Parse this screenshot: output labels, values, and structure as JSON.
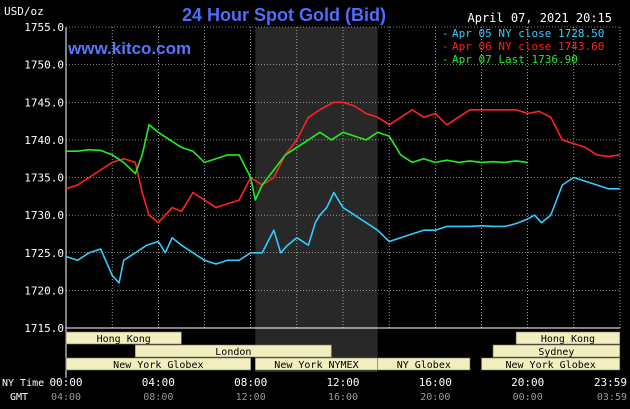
{
  "header": {
    "unit": "USD/oz",
    "title": "24 Hour Spot Gold (Bid)",
    "date": "April 07, 2021 20:15",
    "site": "www.kitco.com"
  },
  "legend": [
    {
      "label": "Apr 05 NY close 1728.50",
      "color": "#33ccff"
    },
    {
      "label": "Apr 06 NY close 1743.60",
      "color": "#ff2222"
    },
    {
      "label": "Apr 07 Last 1736.90",
      "color": "#22ee22"
    }
  ],
  "axis": {
    "y_ticks": [
      "1755.0",
      "1750.0",
      "1745.0",
      "1740.0",
      "1735.0",
      "1730.0",
      "1725.0",
      "1720.0",
      "1715.0"
    ],
    "ny_label": "NY Time",
    "gmt_label": "GMT",
    "ny_ticks": [
      "00:00",
      "04:00",
      "08:00",
      "12:00",
      "16:00",
      "20:00",
      "23:59"
    ],
    "gmt_ticks": [
      "04:00",
      "08:00",
      "12:00",
      "16:00",
      "20:00",
      "00:00",
      "03:59"
    ]
  },
  "sessions": [
    {
      "label": "Hong Kong",
      "row": 0,
      "start": 0,
      "end": 5
    },
    {
      "label": "Hong Kong",
      "row": 0,
      "start": 19.5,
      "end": 23.99
    },
    {
      "label": "London",
      "row": 1,
      "start": 3,
      "end": 11.5
    },
    {
      "label": "Sydney",
      "row": 1,
      "start": 18.5,
      "end": 23.99
    },
    {
      "label": "New York Globex",
      "row": 2,
      "start": 0,
      "end": 8
    },
    {
      "label": "New York NYMEX",
      "row": 2,
      "start": 8.2,
      "end": 13.5
    },
    {
      "label": "NY Globex",
      "row": 2,
      "start": 13.5,
      "end": 17.5
    },
    {
      "label": "New York Globex",
      "row": 2,
      "start": 18,
      "end": 23.99
    }
  ],
  "colors": {
    "background": "#000000",
    "grid": "#ffffff",
    "title": "#4f6cff",
    "site": "#5577ff",
    "shade": "#282828",
    "session_fill": "#f2eebd",
    "session_text": "#000000"
  },
  "chart_data": {
    "type": "line",
    "title": "24 Hour Spot Gold (Bid)",
    "ylabel": "USD/oz",
    "xlabel": "NY Time",
    "xlim": [
      0,
      24
    ],
    "ylim": [
      1715,
      1755
    ],
    "grid": true,
    "legend_position": "top-right",
    "shaded_range": [
      8.2,
      13.5
    ],
    "series": [
      {
        "name": "Apr 05 NY close 1728.50",
        "color": "#33ccff",
        "x": [
          0,
          0.5,
          1,
          1.5,
          2,
          2.3,
          2.5,
          3,
          3.5,
          4,
          4.3,
          4.6,
          5,
          5.5,
          6,
          6.5,
          7,
          7.5,
          8,
          8.5,
          9,
          9.3,
          9.6,
          10,
          10.5,
          10.8,
          11,
          11.3,
          11.6,
          12,
          12.5,
          13,
          13.5,
          14,
          14.5,
          15,
          15.5,
          16,
          16.5,
          17,
          17.5,
          18,
          18.5,
          19,
          19.3,
          19.6,
          20,
          20.3,
          20.6,
          21,
          21.5,
          22,
          22.5,
          23,
          23.5,
          23.99
        ],
        "y": [
          1724.5,
          1724,
          1725,
          1725.5,
          1722,
          1721,
          1724,
          1725,
          1726,
          1726.5,
          1725,
          1727,
          1726,
          1725,
          1724,
          1723.5,
          1724,
          1724,
          1725,
          1725,
          1728,
          1725,
          1726,
          1727,
          1726,
          1729,
          1730,
          1731,
          1733,
          1731,
          1730,
          1729,
          1728,
          1726.5,
          1727,
          1727.5,
          1728,
          1728,
          1728.5,
          1728.5,
          1728.5,
          1728.6,
          1728.5,
          1728.5,
          1728.7,
          1729,
          1729.5,
          1730,
          1729,
          1730,
          1734,
          1735,
          1734.5,
          1734,
          1733.5,
          1733.5
        ]
      },
      {
        "name": "Apr 06 NY close 1743.60",
        "color": "#ff2222",
        "x": [
          0,
          0.5,
          1,
          1.5,
          2,
          2.5,
          3,
          3.3,
          3.6,
          4,
          4.3,
          4.6,
          5,
          5.5,
          6,
          6.5,
          7,
          7.5,
          8,
          8.5,
          9,
          9.5,
          10,
          10.5,
          11,
          11.3,
          11.6,
          12,
          12.5,
          13,
          13.5,
          14,
          14.5,
          15,
          15.5,
          16,
          16.5,
          17,
          17.5,
          18,
          18.5,
          19,
          19.5,
          20,
          20.5,
          21,
          21.5,
          22,
          22.5,
          23,
          23.5,
          23.99
        ],
        "y": [
          1733.5,
          1734,
          1735,
          1736,
          1737,
          1737.5,
          1737,
          1733,
          1730,
          1729,
          1730,
          1731,
          1730.5,
          1733,
          1732,
          1731,
          1731.5,
          1732,
          1735,
          1734,
          1735,
          1738,
          1740,
          1743,
          1744,
          1744.5,
          1745,
          1745,
          1744.5,
          1743.5,
          1743,
          1742,
          1743,
          1744,
          1743,
          1743.5,
          1742,
          1743,
          1744,
          1744,
          1744,
          1744,
          1744,
          1743.5,
          1743.8,
          1743,
          1740,
          1739.5,
          1739,
          1738,
          1737.8,
          1738
        ]
      },
      {
        "name": "Apr 07 Last 1736.90",
        "color": "#22ee22",
        "x": [
          0,
          0.5,
          1,
          1.5,
          2,
          2.5,
          3,
          3.3,
          3.6,
          4,
          4.5,
          5,
          5.5,
          6,
          6.5,
          7,
          7.5,
          8,
          8.2,
          8.5,
          9,
          9.5,
          10,
          10.5,
          11,
          11.5,
          12,
          12.5,
          13,
          13.5,
          14,
          14.5,
          15,
          15.5,
          16,
          16.5,
          17,
          17.5,
          18,
          18.5,
          19,
          19.5,
          19.99
        ],
        "y": [
          1738.5,
          1738.5,
          1738.7,
          1738.6,
          1738,
          1737,
          1735.5,
          1738,
          1742,
          1741,
          1740,
          1739,
          1738.5,
          1737,
          1737.5,
          1738,
          1738,
          1735,
          1732,
          1734,
          1736,
          1738,
          1739,
          1740,
          1741,
          1740,
          1741,
          1740.5,
          1740,
          1741,
          1740.5,
          1738,
          1737,
          1737.5,
          1737,
          1737.3,
          1737,
          1737.2,
          1737,
          1737.1,
          1737,
          1737.2,
          1737
        ]
      }
    ]
  }
}
